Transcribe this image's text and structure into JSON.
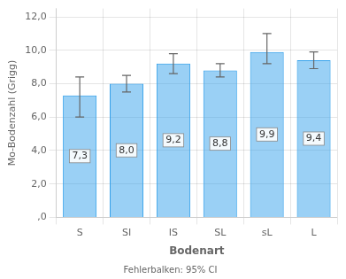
{
  "chart_data": {
    "type": "bar",
    "categories": [
      "S",
      "SI",
      "IS",
      "SL",
      "sL",
      "L"
    ],
    "values": [
      7.3,
      8.0,
      9.2,
      8.8,
      9.9,
      9.4
    ],
    "value_labels": [
      "7,3",
      "8,0",
      "9,2",
      "8,8",
      "9,9",
      "9,4"
    ],
    "data_labels": true,
    "errors_upper": [
      1.1,
      0.5,
      0.6,
      0.4,
      1.1,
      0.5
    ],
    "errors_lower": [
      1.3,
      0.5,
      0.6,
      0.4,
      0.7,
      0.5
    ],
    "ylabel": "Mo-Bodenzahl (Grigg)",
    "xlabel": "Bodenart",
    "footer": "Fehlerbalken: 95% CI",
    "ylim": [
      0,
      12.5
    ],
    "yticks": [
      {
        "value": 0,
        "label": ",0"
      },
      {
        "value": 2,
        "label": "2,0"
      },
      {
        "value": 4,
        "label": "4,0"
      },
      {
        "value": 6,
        "label": "6,0"
      },
      {
        "value": 8,
        "label": "8,0"
      },
      {
        "value": 10,
        "label": "10,0"
      },
      {
        "value": 12,
        "label": "12,0"
      }
    ],
    "grid": true
  }
}
